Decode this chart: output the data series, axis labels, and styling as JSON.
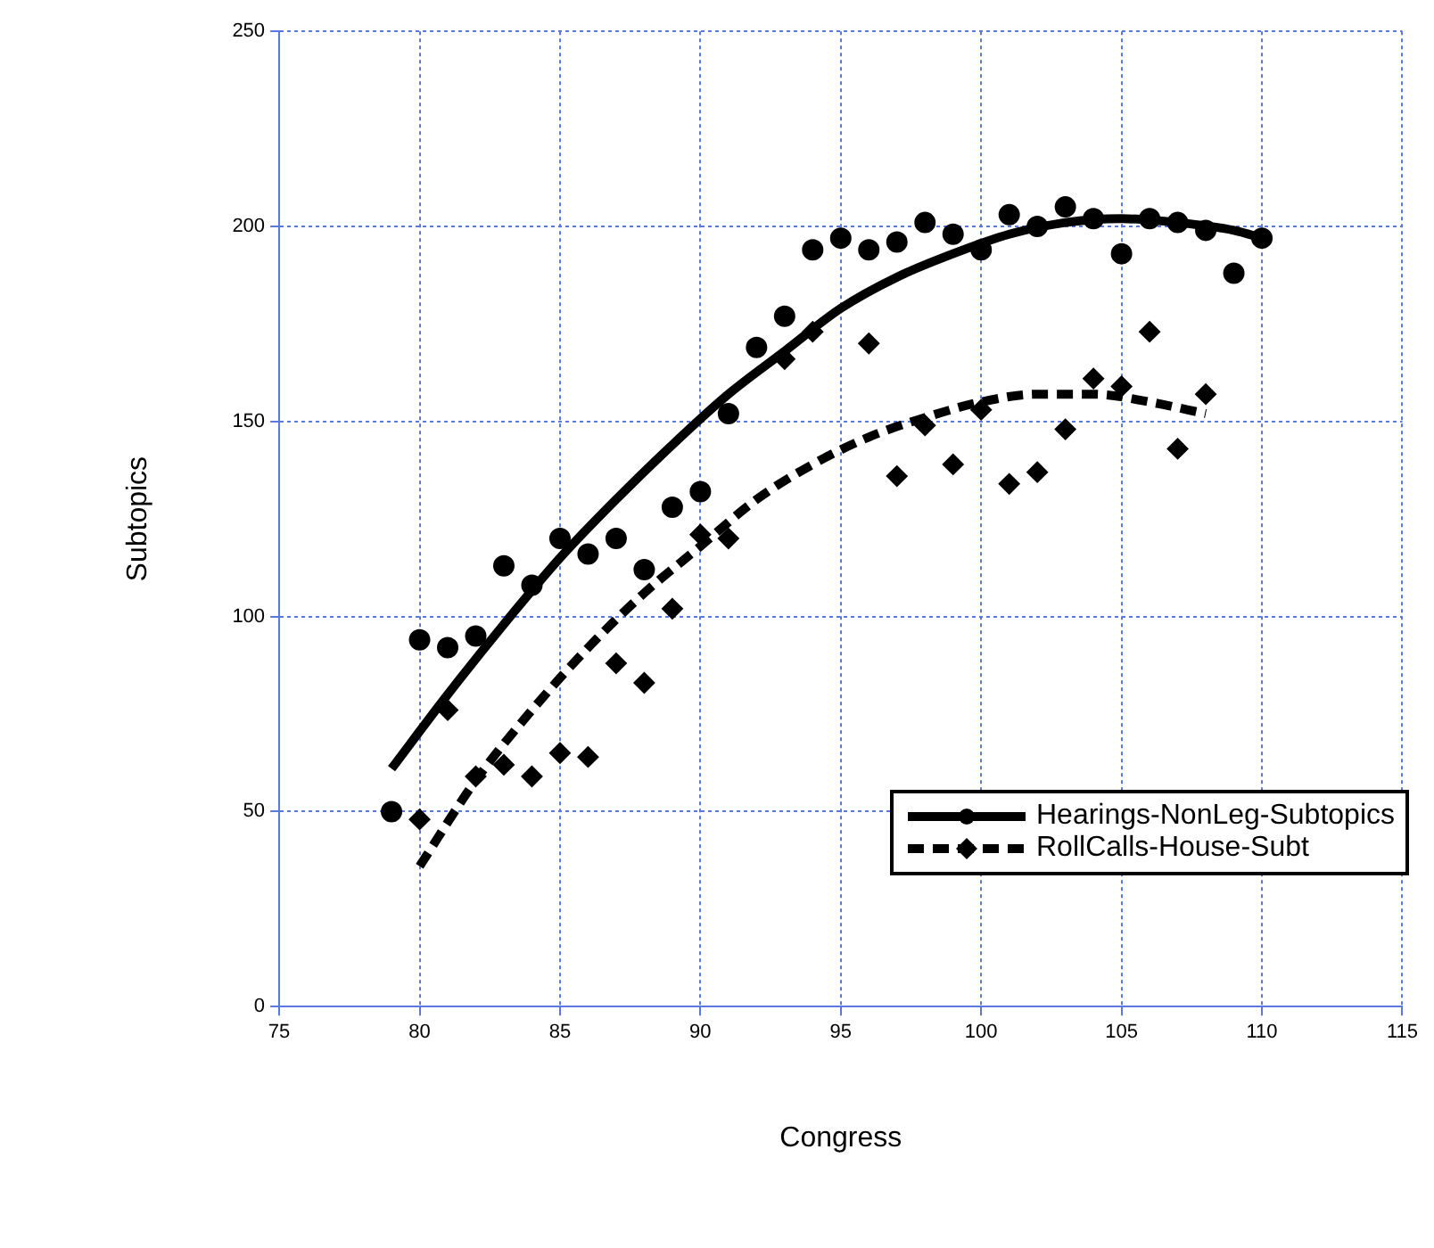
{
  "chart_data": {
    "type": "scatter",
    "xlabel": "Congress",
    "ylabel": "Subtopics",
    "xlim": [
      75,
      115
    ],
    "xticks": [
      75,
      80,
      85,
      90,
      95,
      100,
      105,
      110,
      115
    ],
    "ylim": [
      0,
      250
    ],
    "yticks": [
      0,
      50,
      100,
      150,
      200,
      250
    ],
    "grid": true,
    "legend": "bottom right",
    "series": [
      {
        "name": "Hearings-NonLeg-Subtopics",
        "marker": "circle",
        "color": "#000000",
        "x": [
          79,
          80,
          81,
          82,
          83,
          84,
          85,
          86,
          87,
          88,
          89,
          90,
          91,
          92,
          93,
          94,
          95,
          96,
          97,
          98,
          99,
          100,
          101,
          102,
          103,
          104,
          105,
          106,
          107,
          108,
          109,
          110
        ],
        "values": [
          50,
          94,
          92,
          95,
          113,
          108,
          120,
          116,
          120,
          112,
          128,
          132,
          152,
          169,
          177,
          194,
          197,
          194,
          196,
          201,
          198,
          194,
          203,
          200,
          205,
          202,
          193,
          202,
          201,
          199,
          188,
          197
        ]
      },
      {
        "type": "line",
        "line_style": "solid",
        "marker": "none",
        "color": "#000000",
        "x": [
          79,
          81,
          83,
          85,
          87,
          89,
          91,
          93,
          95,
          97,
          99,
          101,
          103,
          105,
          107,
          109,
          110
        ],
        "values": [
          61,
          80,
          98,
          115,
          130,
          144,
          157,
          168,
          179,
          187,
          193,
          198,
          201,
          202,
          201,
          199,
          197
        ]
      },
      {
        "name": "RollCalls-House-Subt",
        "marker": "diamond",
        "color": "#000000",
        "x": [
          80,
          81,
          82,
          83,
          84,
          85,
          86,
          87,
          88,
          89,
          90,
          91,
          93,
          94,
          96,
          97,
          98,
          99,
          100,
          101,
          102,
          103,
          104,
          105,
          106,
          107,
          108
        ],
        "values": [
          48,
          76,
          59,
          62,
          59,
          65,
          64,
          88,
          83,
          102,
          121,
          120,
          166,
          173,
          170,
          136,
          149,
          139,
          153,
          134,
          137,
          148,
          161,
          159,
          173,
          143,
          157
        ]
      },
      {
        "type": "line",
        "line_style": "dashed",
        "marker": "none",
        "color": "#000000",
        "x": [
          80,
          82,
          84,
          86,
          88,
          90,
          92,
          94,
          96,
          98,
          100,
          102,
          104,
          106,
          108
        ],
        "values": [
          36,
          58,
          76,
          92,
          106,
          118,
          130,
          139,
          146,
          151,
          155,
          157,
          157,
          155,
          152
        ]
      }
    ]
  }
}
